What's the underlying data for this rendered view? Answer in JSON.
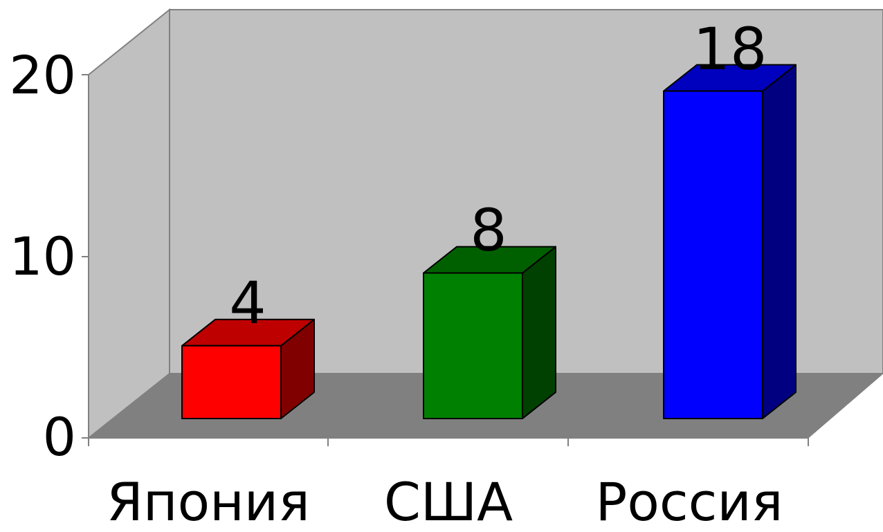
{
  "chart_data": {
    "type": "bar",
    "categories": [
      "Япония",
      "США",
      "Россия"
    ],
    "values": [
      4,
      8,
      18
    ],
    "data_labels": [
      "4",
      "8",
      "18"
    ],
    "y_ticks": [
      "0",
      "10",
      "20"
    ],
    "ylim": [
      0,
      20
    ],
    "bar_colors": [
      "#ff0000",
      "#008000",
      "#0000ff"
    ],
    "wall_color": "#c0c0c0",
    "floor_color": "#808080",
    "style": "3d",
    "legend": "none",
    "grid": false
  }
}
